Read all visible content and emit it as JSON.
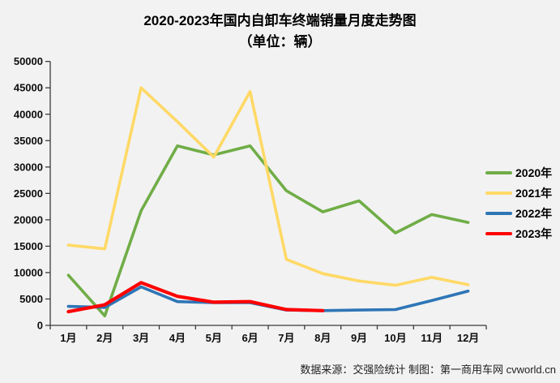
{
  "title": {
    "line1": "2020-2023年国内自卸车终端销量月度走势图",
    "line2": "（单位：辆）"
  },
  "footer": {
    "source": "数据来源：交强险统计  制图：第一商用车网 cvworld.cn"
  },
  "colors": {
    "background": "#F2F2F2",
    "axis": "#3b3b3b",
    "green": "#70AD47",
    "yellow": "#FFD966",
    "blue": "#2E75B6",
    "red": "#FF0000"
  },
  "chart_data": {
    "type": "line",
    "title": "2020-2023年国内自卸车终端销量月度走势图（单位：辆）",
    "categories": [
      "1月",
      "2月",
      "3月",
      "4月",
      "5月",
      "6月",
      "7月",
      "8月",
      "9月",
      "10月",
      "11月",
      "12月"
    ],
    "series": [
      {
        "name": "2020年",
        "color_key": "green",
        "values": [
          9500,
          1800,
          21700,
          34000,
          32300,
          34000,
          25500,
          21500,
          23600,
          17500,
          21000,
          19500
        ]
      },
      {
        "name": "2021年",
        "color_key": "yellow",
        "values": [
          15200,
          14500,
          45000,
          38600,
          31900,
          44300,
          12500,
          9800,
          8400,
          7600,
          9100,
          7700
        ]
      },
      {
        "name": "2022年",
        "color_key": "blue",
        "values": [
          3600,
          3400,
          7300,
          4500,
          4300,
          4300,
          2900,
          2800,
          2900,
          3000,
          4700,
          6500
        ]
      },
      {
        "name": "2023年",
        "color_key": "red",
        "values": [
          2600,
          3900,
          8100,
          5500,
          4400,
          4500,
          3000,
          2800,
          null,
          null,
          null,
          null
        ]
      }
    ],
    "xlabel": "",
    "ylabel": "",
    "ylim": [
      0,
      50000
    ],
    "yticks": [
      0,
      5000,
      10000,
      15000,
      20000,
      25000,
      30000,
      35000,
      40000,
      45000,
      50000
    ],
    "grid": false,
    "legend_position": "right"
  }
}
